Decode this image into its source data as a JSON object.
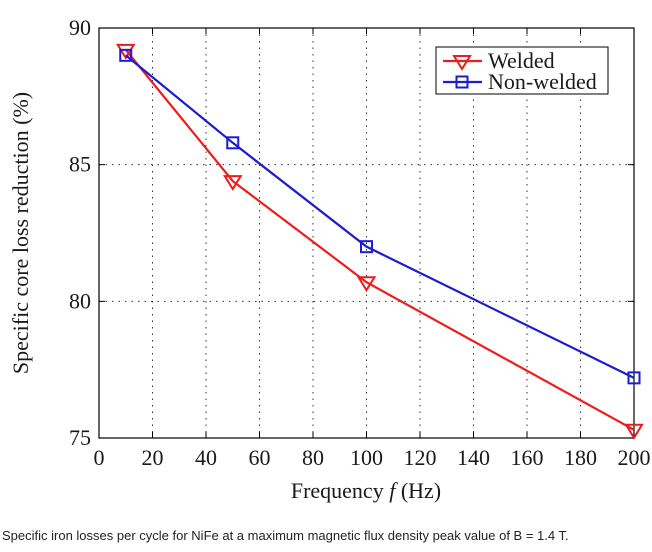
{
  "chart_data": {
    "type": "line",
    "xlabel_prefix": "Frequency ",
    "xlabel_var": "f",
    "xlabel_unit": " (Hz)",
    "ylabel": "Specific core loss reduction (%)",
    "xlim": [
      0,
      200
    ],
    "ylim": [
      75,
      90
    ],
    "xticks": [
      0,
      20,
      40,
      60,
      80,
      100,
      120,
      140,
      160,
      180,
      200
    ],
    "yticks": [
      75,
      80,
      85,
      90
    ],
    "grid": true,
    "legend_position": "top-right",
    "series": [
      {
        "name": "Welded",
        "color": "#ee1c1c",
        "marker": "triangle-down",
        "x": [
          10,
          50,
          100,
          200
        ],
        "values": [
          89.2,
          84.4,
          80.7,
          75.3
        ]
      },
      {
        "name": "Non-welded",
        "color": "#1c1cd0",
        "marker": "square",
        "x": [
          10,
          50,
          100,
          200
        ],
        "values": [
          89.0,
          85.8,
          82.0,
          77.2
        ]
      }
    ]
  },
  "caption": "Specific iron losses per cycle for NiFe at a maximum magnetic flux density peak value of B = 1.4 T."
}
